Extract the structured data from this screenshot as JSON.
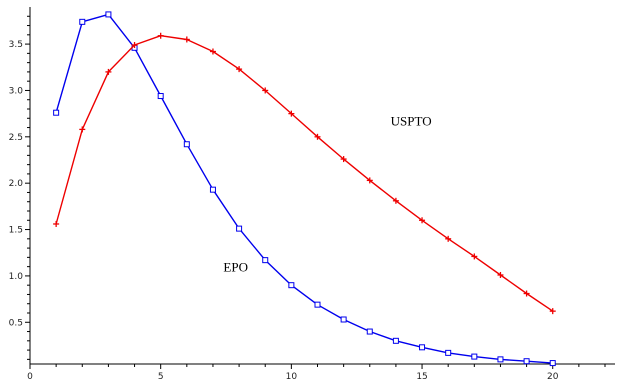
{
  "chart_data": {
    "type": "line",
    "title": "",
    "xlabel": "",
    "ylabel": "",
    "xlim": [
      0,
      22
    ],
    "ylim": [
      0.05,
      3.9
    ],
    "x_ticks": [
      0,
      5,
      10,
      15,
      20
    ],
    "x_tick_labels": [
      "0",
      "5",
      "10",
      "15",
      "20"
    ],
    "y_ticks": [
      0.5,
      1.0,
      1.5,
      2.0,
      2.5,
      3.0,
      3.5
    ],
    "y_tick_labels": [
      "0.5",
      "1.0",
      "1.5",
      "2.0",
      "2.5",
      "3.0",
      "3.5"
    ],
    "grid": false,
    "series": [
      {
        "name": "EPO",
        "marker": "square",
        "color": "#0000ee",
        "x": [
          1,
          2,
          3,
          4,
          5,
          6,
          7,
          8,
          9,
          10,
          11,
          12,
          13,
          14,
          15,
          16,
          17,
          18,
          19,
          20
        ],
        "y": [
          2.76,
          3.74,
          3.82,
          3.46,
          2.94,
          2.42,
          1.93,
          1.51,
          1.17,
          0.9,
          0.69,
          0.53,
          0.4,
          0.3,
          0.23,
          0.17,
          0.13,
          0.1,
          0.08,
          0.06
        ]
      },
      {
        "name": "USPTO",
        "marker": "plus",
        "color": "#ee0000",
        "x": [
          1,
          2,
          3,
          4,
          5,
          6,
          7,
          8,
          9,
          10,
          11,
          12,
          13,
          14,
          15,
          16,
          17,
          18,
          19,
          20
        ],
        "y": [
          1.56,
          2.58,
          3.2,
          3.49,
          3.59,
          3.55,
          3.42,
          3.23,
          3.0,
          2.75,
          2.5,
          2.26,
          2.03,
          1.81,
          1.6,
          1.4,
          1.21,
          1.01,
          0.81,
          0.62
        ]
      }
    ],
    "annotations": [
      {
        "text": "EPO",
        "x": 7.4,
        "y": 1.05
      },
      {
        "text": "USPTO",
        "x": 13.8,
        "y": 2.62
      }
    ]
  }
}
